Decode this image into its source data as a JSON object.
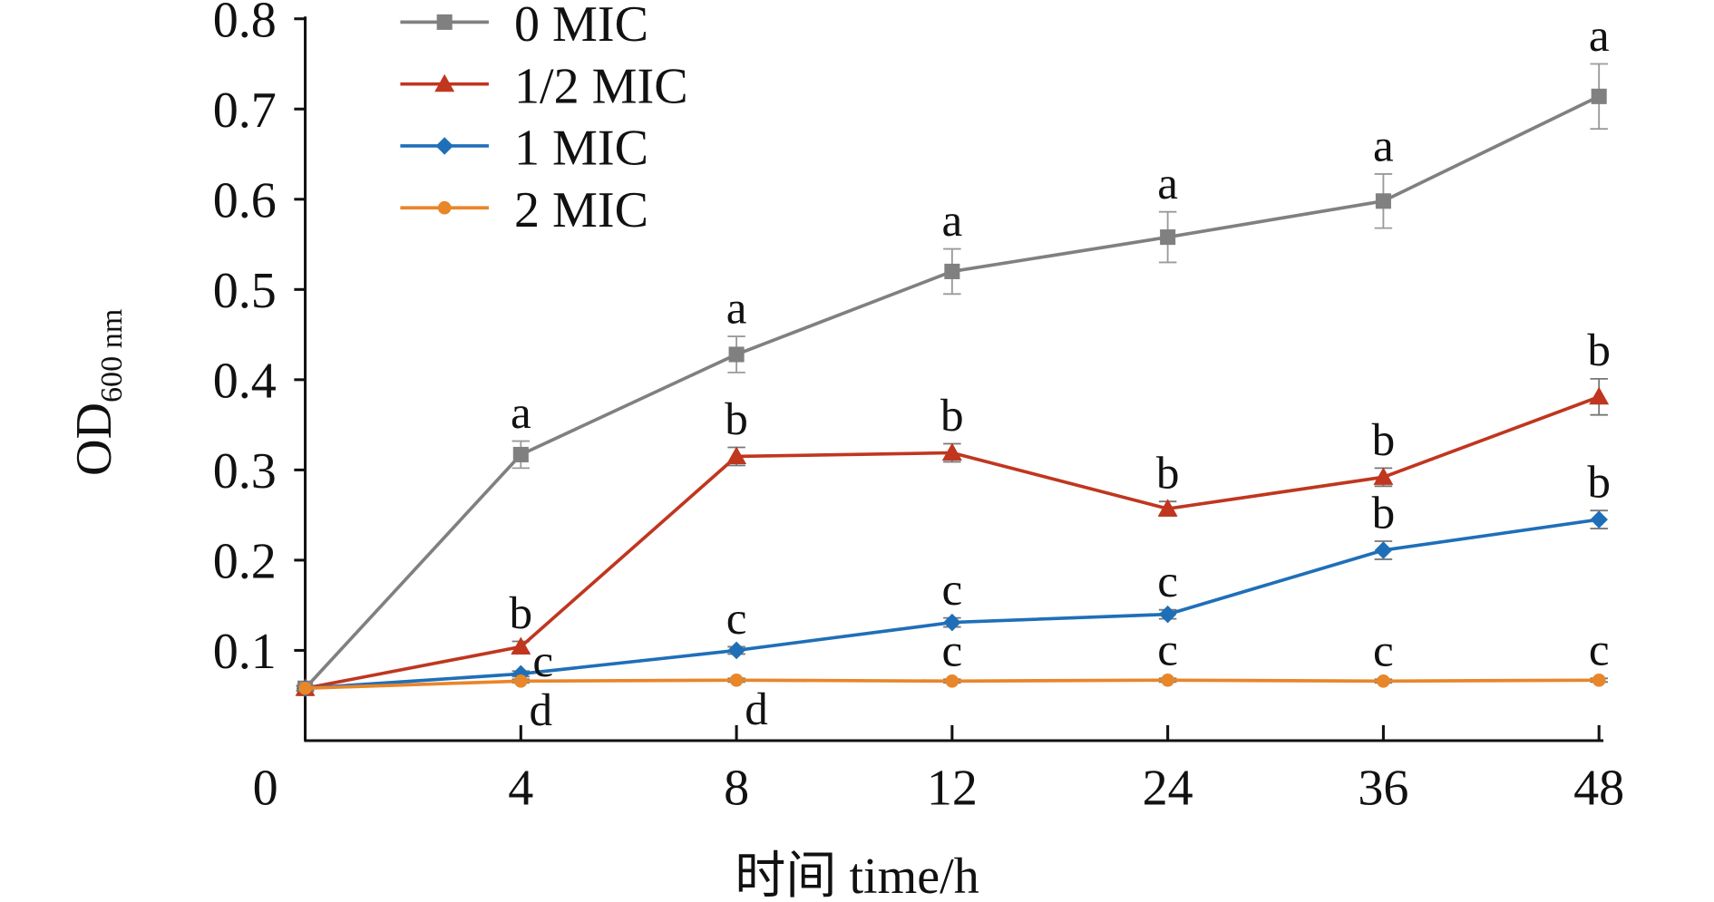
{
  "chart_data": {
    "type": "line",
    "x_label": "时间 time/h",
    "y_label": "OD",
    "y_label_sub": "600 nm",
    "categories": [
      "0",
      "4",
      "8",
      "12",
      "24",
      "36",
      "48"
    ],
    "ylim": [
      0,
      0.8
    ],
    "yticks": [
      0.1,
      0.2,
      0.3,
      0.4,
      0.5,
      0.6,
      0.7,
      0.8
    ],
    "legend": "top-left",
    "series": [
      {
        "name": "0 MIC",
        "color": "#808080",
        "marker": "square",
        "values": [
          0.058,
          0.317,
          0.428,
          0.52,
          0.558,
          0.598,
          0.714
        ],
        "errors": [
          0.003,
          0.015,
          0.02,
          0.025,
          0.028,
          0.03,
          0.036
        ],
        "letters": [
          null,
          "a",
          "a",
          "a",
          "a",
          "a",
          "a"
        ]
      },
      {
        "name": "1/2 MIC",
        "color": "#c0361f",
        "marker": "triangle",
        "values": [
          0.058,
          0.104,
          0.315,
          0.319,
          0.257,
          0.292,
          0.381
        ],
        "errors": [
          0.003,
          0.006,
          0.01,
          0.01,
          0.008,
          0.01,
          0.02
        ],
        "letters": [
          null,
          "b",
          "b",
          "b",
          "b",
          "b",
          "b"
        ]
      },
      {
        "name": "1 MIC",
        "color": "#1f6fb8",
        "marker": "diamond",
        "values": [
          0.058,
          0.074,
          0.1,
          0.131,
          0.14,
          0.211,
          0.245
        ],
        "errors": [
          0.003,
          0.003,
          0.004,
          0.005,
          0.005,
          0.01,
          0.01
        ],
        "letters": [
          null,
          "c",
          "c",
          "c",
          "c",
          "b",
          "b"
        ]
      },
      {
        "name": "2 MIC",
        "color": "#e8862a",
        "marker": "circle",
        "values": [
          0.058,
          0.066,
          0.067,
          0.066,
          0.067,
          0.066,
          0.067
        ],
        "errors": [
          0.002,
          0.002,
          0.002,
          0.002,
          0.002,
          0.002,
          0.002
        ],
        "letters": [
          null,
          "d",
          "d",
          "c",
          "c",
          "c",
          "c"
        ]
      }
    ]
  }
}
